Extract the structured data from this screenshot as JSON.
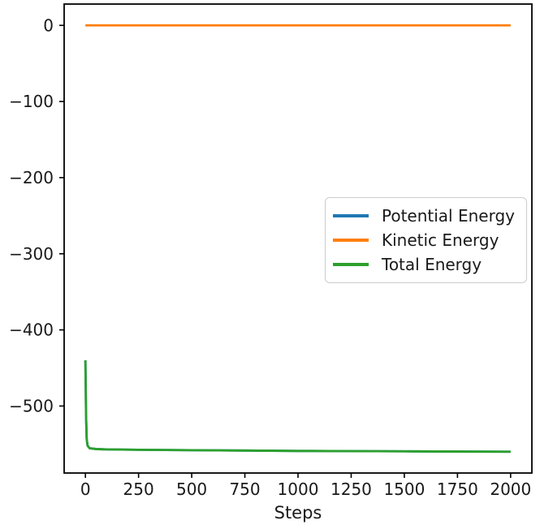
{
  "chart_data": {
    "type": "line",
    "title": "",
    "xlabel": "Steps",
    "ylabel": "",
    "x_ticks": [
      0,
      250,
      500,
      750,
      1000,
      1250,
      1500,
      1750,
      2000
    ],
    "y_ticks": [
      0,
      -100,
      -200,
      -300,
      -400,
      -500
    ],
    "xlim": [
      -100,
      2100
    ],
    "ylim": [
      -588,
      28
    ],
    "grid": false,
    "legend_position": "center-right",
    "x": [
      0,
      3,
      6,
      10,
      20,
      50,
      100,
      250,
      500,
      750,
      1000,
      1250,
      1500,
      1750,
      2000
    ],
    "series": [
      {
        "name": "Potential Energy",
        "color": "#1f77b4",
        "values": [
          -440,
          -512,
          -543,
          -552,
          -555.5,
          -556.5,
          -557,
          -557.5,
          -558,
          -558.5,
          -559,
          -559.2,
          -559.5,
          -559.8,
          -560
        ]
      },
      {
        "name": "Kinetic Energy",
        "color": "#ff7f0e",
        "values": [
          0,
          0,
          0,
          0,
          0,
          0,
          0,
          0,
          0,
          0,
          0,
          0,
          0,
          0,
          0
        ]
      },
      {
        "name": "Total Energy",
        "color": "#2ca02c",
        "values": [
          -440,
          -512,
          -543,
          -552,
          -555.5,
          -556.5,
          -557,
          -557.5,
          -558,
          -558.5,
          -559,
          -559.2,
          -559.5,
          -559.8,
          -560
        ]
      }
    ],
    "axis_color": "#000000",
    "tick_label_color": "#1a1a1a"
  }
}
